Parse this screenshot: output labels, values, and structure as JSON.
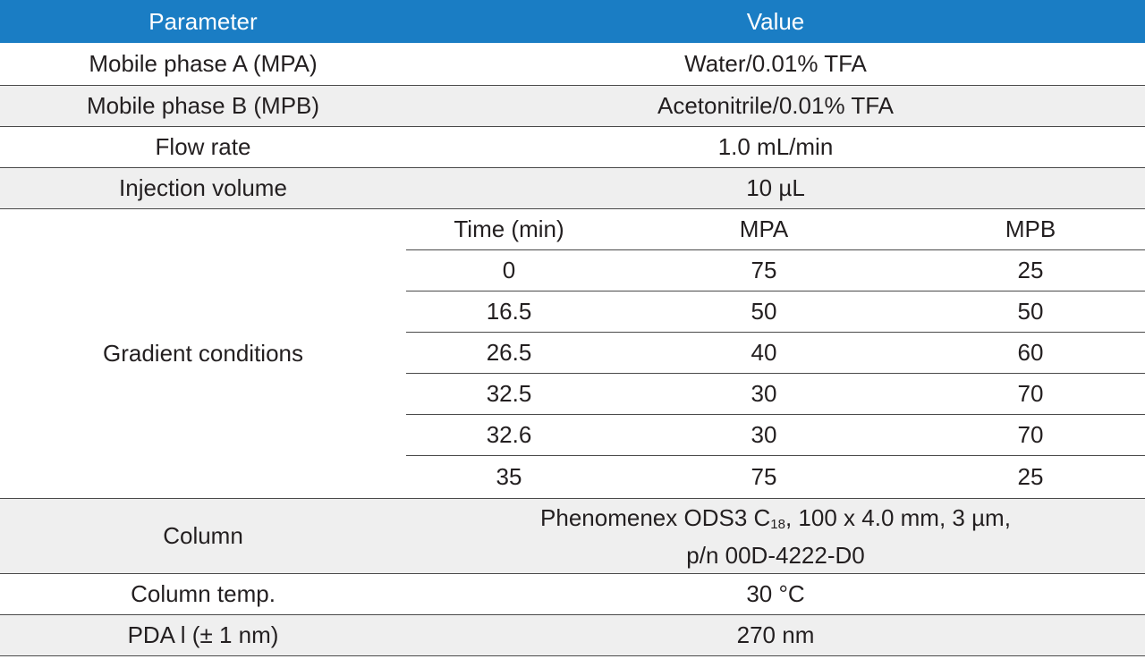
{
  "header": {
    "parameter": "Parameter",
    "value": "Value"
  },
  "rows": [
    {
      "parameter": "Mobile phase A (MPA)",
      "value": "Water/0.01% TFA"
    },
    {
      "parameter": "Mobile phase B (MPB)",
      "value": "Acetonitrile/0.01% TFA"
    },
    {
      "parameter": "Flow rate",
      "value": "1.0 mL/min"
    },
    {
      "parameter": "Injection volume",
      "value": "10 µL"
    }
  ],
  "gradient": {
    "parameter": "Gradient conditions",
    "columns": [
      "Time (min)",
      "MPA",
      "MPB"
    ],
    "steps": [
      {
        "time": "0",
        "mpa": "75",
        "mpb": "25"
      },
      {
        "time": "16.5",
        "mpa": "50",
        "mpb": "50"
      },
      {
        "time": "26.5",
        "mpa": "40",
        "mpb": "60"
      },
      {
        "time": "32.5",
        "mpa": "30",
        "mpb": "70"
      },
      {
        "time": "32.6",
        "mpa": "30",
        "mpb": "70"
      },
      {
        "time": "35",
        "mpa": "75",
        "mpb": "25"
      }
    ]
  },
  "column": {
    "parameter": "Column",
    "value_prefix": "Phenomenex ODS3 C",
    "value_subscript": "18",
    "value_suffix": ", 100 x 4.0 mm, 3 µm,",
    "value_line2": "p/n 00D-4222-D0"
  },
  "tail_rows": [
    {
      "parameter": "Column temp.",
      "value": "30 °C"
    },
    {
      "parameter": "PDA l (± 1 nm)",
      "value": "270 nm"
    }
  ],
  "colors": {
    "header_bg": "#1a7dc4",
    "shade_bg": "#efefef",
    "rule": "#4a4a4a"
  }
}
